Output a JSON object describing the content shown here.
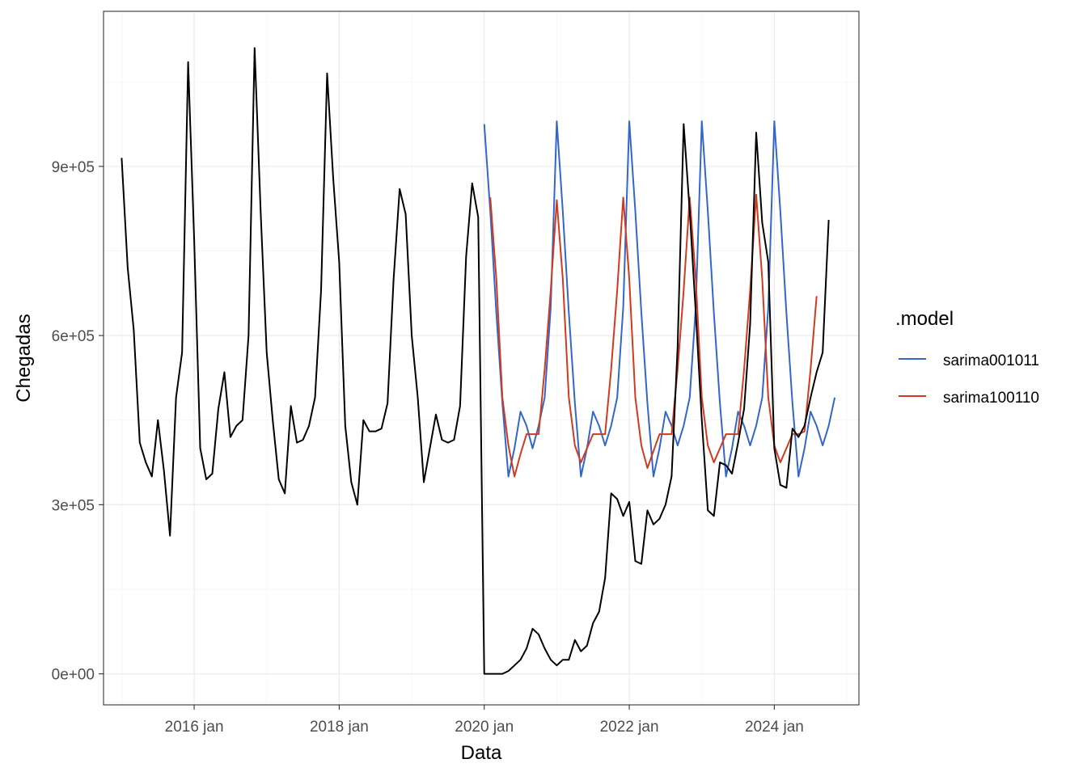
{
  "chart_data": {
    "type": "line",
    "title": "",
    "xlabel": "Data",
    "ylabel": "Chegadas",
    "x_ticks": [
      "2016 jan",
      "2018 jan",
      "2020 jan",
      "2022 jan",
      "2024 jan"
    ],
    "y_ticks": [
      "0e+00",
      "3e+05",
      "6e+05",
      "9e+05"
    ],
    "y_tick_values": [
      0,
      300000,
      600000,
      900000
    ],
    "xlim": [
      "2014-10",
      "2025-03"
    ],
    "ylim": [
      -55000,
      1175000
    ],
    "grid": true,
    "legend": {
      "title": ".model",
      "position": "right",
      "entries": [
        {
          "label": "sarima001011",
          "color": "#3366cc"
        },
        {
          "label": "sarima100110",
          "color": "#d23a1e"
        }
      ]
    },
    "series": [
      {
        "name": "",
        "color": "#000000",
        "start": "2015-01",
        "values": [
          915000,
          720000,
          610000,
          410000,
          375000,
          350000,
          450000,
          360000,
          245000,
          490000,
          570000,
          1085000,
          770000,
          400000,
          345000,
          355000,
          470000,
          535000,
          420000,
          440000,
          450000,
          600000,
          1110000,
          820000,
          570000,
          450000,
          345000,
          320000,
          475000,
          410000,
          415000,
          440000,
          490000,
          680000,
          1065000,
          880000,
          730000,
          440000,
          340000,
          300000,
          450000,
          430000,
          430000,
          435000,
          480000,
          700000,
          860000,
          815000,
          600000,
          490000,
          340000,
          400000,
          460000,
          415000,
          410000,
          415000,
          475000,
          740000,
          870000,
          810000,
          0,
          0,
          0,
          0,
          5000,
          15000,
          25000,
          45000,
          80000,
          70000,
          45000,
          25000,
          15000,
          25000,
          25000,
          60000,
          40000,
          50000,
          90000,
          110000,
          170000,
          320000,
          310000,
          280000,
          305000,
          200000,
          195000,
          290000,
          265000,
          275000,
          300000,
          350000,
          580000,
          975000,
          820000,
          640000,
          450000,
          290000,
          280000,
          375000,
          370000,
          355000,
          410000,
          470000,
          620000,
          960000,
          800000,
          730000,
          400000,
          335000,
          330000,
          435000,
          420000,
          440000,
          490000,
          535000,
          570000,
          805000
        ]
      },
      {
        "name": "sarima001011",
        "color": "#3366cc",
        "start": "2020-01",
        "values": [
          975000,
          820000,
          640000,
          480000,
          350000,
          400000,
          465000,
          440000,
          400000,
          440000,
          490000,
          650000,
          980000,
          820000,
          640000,
          480000,
          350000,
          400000,
          465000,
          440000,
          405000,
          440000,
          490000,
          650000,
          980000,
          820000,
          640000,
          480000,
          350000,
          400000,
          465000,
          440000,
          405000,
          440000,
          490000,
          650000,
          980000,
          820000,
          640000,
          480000,
          350000,
          400000,
          465000,
          440000,
          405000,
          440000,
          490000,
          650000,
          980000,
          820000,
          640000,
          480000,
          350000,
          400000,
          465000,
          440000,
          405000,
          440000,
          490000
        ]
      },
      {
        "name": "sarima100110",
        "color": "#d23a1e",
        "start": "2020-02",
        "values": [
          845000,
          700000,
          490000,
          405000,
          350000,
          390000,
          425000,
          425000,
          425000,
          540000,
          680000,
          840000,
          700000,
          490000,
          405000,
          375000,
          400000,
          425000,
          425000,
          425000,
          540000,
          680000,
          845000,
          700000,
          490000,
          405000,
          365000,
          395000,
          425000,
          425000,
          425000,
          540000,
          680000,
          845000,
          700000,
          490000,
          405000,
          375000,
          400000,
          425000,
          425000,
          425000,
          540000,
          680000,
          850000,
          700000,
          490000,
          405000,
          375000,
          400000,
          425000,
          425000,
          430000,
          540000,
          670000
        ]
      }
    ]
  }
}
